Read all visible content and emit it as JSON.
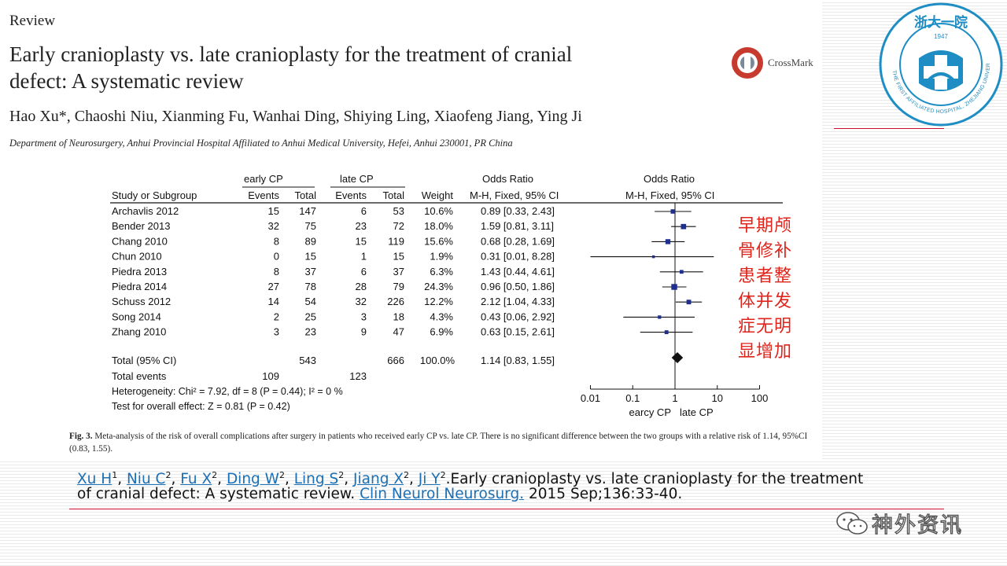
{
  "header": {
    "section_label": "Review",
    "title": "Early cranioplasty vs. late cranioplasty for the treatment of cranial defect: A systematic review",
    "authors": "Hao Xu*, Chaoshi Niu, Xianming Fu, Wanhai Ding, Shiying Ling, Xiaofeng Jiang, Ying Ji",
    "affiliation": "Department of Neurosurgery, Anhui Provincial Hospital Affiliated to Anhui Medical University, Hefei, Anhui 230001, PR China",
    "crossmark": "CrossMark"
  },
  "logo": {
    "top_text": "浙大一院",
    "year": "1947",
    "ring_text": "THE FIRST AFFILIATED HOSPITAL, ZHEJIANG UNIVERSITY"
  },
  "chart_data": {
    "type": "forest",
    "group_labels": {
      "early": "early CP",
      "late": "late CP",
      "odds_ratio_left": "Odds Ratio",
      "odds_ratio_right": "Odds Ratio"
    },
    "columns": [
      "Study or Subgroup",
      "Events",
      "Total",
      "Events",
      "Total",
      "Weight",
      "M-H, Fixed, 95% CI",
      "M-H, Fixed, 95% CI"
    ],
    "studies": [
      {
        "study": "Archavlis 2012",
        "e_events": "15",
        "e_total": "147",
        "l_events": "6",
        "l_total": "53",
        "weight": "10.6%",
        "ci_text": "0.89 [0.33, 2.43]",
        "or": 0.89,
        "lo": 0.33,
        "hi": 2.43,
        "w": 10.6
      },
      {
        "study": "Bender 2013",
        "e_events": "32",
        "e_total": "75",
        "l_events": "23",
        "l_total": "72",
        "weight": "18.0%",
        "ci_text": "1.59 [0.81, 3.11]",
        "or": 1.59,
        "lo": 0.81,
        "hi": 3.11,
        "w": 18.0
      },
      {
        "study": "Chang 2010",
        "e_events": "8",
        "e_total": "89",
        "l_events": "15",
        "l_total": "119",
        "weight": "15.6%",
        "ci_text": "0.68 [0.28, 1.69]",
        "or": 0.68,
        "lo": 0.28,
        "hi": 1.69,
        "w": 15.6
      },
      {
        "study": "Chun 2010",
        "e_events": "0",
        "e_total": "15",
        "l_events": "1",
        "l_total": "15",
        "weight": "1.9%",
        "ci_text": "0.31 [0.01, 8.28]",
        "or": 0.31,
        "lo": 0.01,
        "hi": 8.28,
        "w": 1.9
      },
      {
        "study": "Piedra 2013",
        "e_events": "8",
        "e_total": "37",
        "l_events": "6",
        "l_total": "37",
        "weight": "6.3%",
        "ci_text": "1.43 [0.44, 4.61]",
        "or": 1.43,
        "lo": 0.44,
        "hi": 4.61,
        "w": 6.3
      },
      {
        "study": "Piedra 2014",
        "e_events": "27",
        "e_total": "78",
        "l_events": "28",
        "l_total": "79",
        "weight": "24.3%",
        "ci_text": "0.96 [0.50, 1.86]",
        "or": 0.96,
        "lo": 0.5,
        "hi": 1.86,
        "w": 24.3
      },
      {
        "study": "Schuss 2012",
        "e_events": "14",
        "e_total": "54",
        "l_events": "32",
        "l_total": "226",
        "weight": "12.2%",
        "ci_text": "2.12 [1.04, 4.33]",
        "or": 2.12,
        "lo": 1.04,
        "hi": 4.33,
        "w": 12.2
      },
      {
        "study": "Song 2014",
        "e_events": "2",
        "e_total": "25",
        "l_events": "3",
        "l_total": "18",
        "weight": "4.3%",
        "ci_text": "0.43 [0.06, 2.92]",
        "or": 0.43,
        "lo": 0.06,
        "hi": 2.92,
        "w": 4.3
      },
      {
        "study": "Zhang 2010",
        "e_events": "3",
        "e_total": "23",
        "l_events": "9",
        "l_total": "47",
        "weight": "6.9%",
        "ci_text": "0.63 [0.15, 2.61]",
        "or": 0.63,
        "lo": 0.15,
        "hi": 2.61,
        "w": 6.9
      }
    ],
    "total": {
      "label": "Total (95% CI)",
      "e_total": "543",
      "l_total": "666",
      "weight": "100.0%",
      "ci_text": "1.14 [0.83, 1.55]",
      "or": 1.14,
      "lo": 0.83,
      "hi": 1.55
    },
    "total_events": {
      "label": "Total events",
      "early": "109",
      "late": "123"
    },
    "heterogeneity": "Heterogeneity: Chi² = 7.92, df = 8 (P = 0.44); I² = 0 %",
    "overall_effect": "Test for overall effect: Z = 0.81 (P = 0.42)",
    "x_scale": "log",
    "x_ticks": [
      0.01,
      0.1,
      1,
      10,
      100
    ],
    "x_tick_labels": [
      "0.01",
      "0.1",
      "1",
      "10",
      "100"
    ],
    "x_label_left": "earcy CP",
    "x_label_right": "late CP"
  },
  "caption": {
    "label": "Fig. 3.",
    "text": "Meta-analysis of the risk of overall complications after surgery in patients who received early CP vs. late CP. There is no significant difference between the two groups with a relative risk of 1.14, 95%CI (0.83, 1.55)."
  },
  "annotation": {
    "chinese_note": "早期颅骨修补患者整体并发症无明显增加"
  },
  "citation": {
    "authors": [
      {
        "name": "Xu H",
        "sup": "1"
      },
      {
        "name": "Niu C",
        "sup": "2"
      },
      {
        "name": "Fu X",
        "sup": "2"
      },
      {
        "name": "Ding W",
        "sup": "2"
      },
      {
        "name": "Ling S",
        "sup": "2"
      },
      {
        "name": "Jiang X",
        "sup": "2"
      },
      {
        "name": "Ji Y",
        "sup": "2"
      }
    ],
    "title_text": ".Early cranioplasty vs. late cranioplasty for the treatment of cranial defect: A systematic review.",
    "journal": "Clin Neurol Neurosurg.",
    "details": "2015 Sep;136:33-40."
  },
  "watermark": {
    "text": "神外资讯"
  },
  "colors": {
    "accent_red": "#c8102e",
    "note_red": "#e0241b",
    "link_blue": "#1a6fb5",
    "square_blue": "#1f2f8f"
  }
}
